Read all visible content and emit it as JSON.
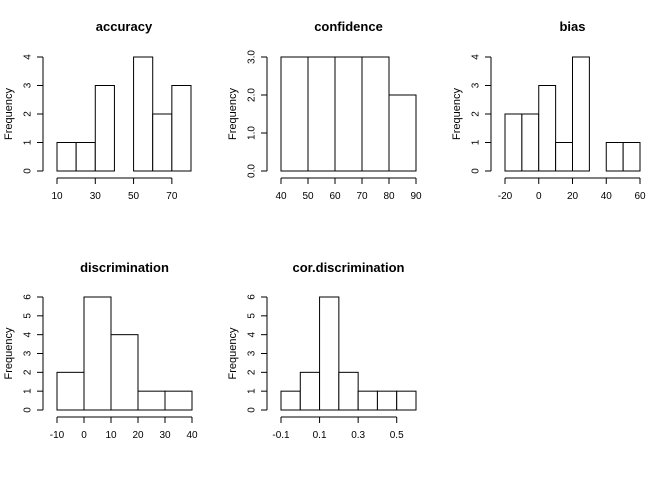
{
  "chart_data": [
    {
      "type": "bar",
      "title": "accuracy",
      "ylabel": "Frequency",
      "bins": [
        [
          10,
          20
        ],
        [
          20,
          30
        ],
        [
          30,
          40
        ],
        [
          40,
          50
        ],
        [
          50,
          60
        ],
        [
          60,
          70
        ],
        [
          70,
          80
        ]
      ],
      "counts": [
        1,
        1,
        3,
        0,
        4,
        2,
        3
      ],
      "xticks": [
        10,
        30,
        50,
        70
      ],
      "yticks": [
        0,
        1,
        2,
        3,
        4
      ],
      "ytick_labels": [
        "0",
        "1",
        "2",
        "3",
        "4"
      ],
      "xlim": [
        10,
        80
      ],
      "ylim": [
        0,
        4
      ]
    },
    {
      "type": "bar",
      "title": "confidence",
      "ylabel": "Frequency",
      "bins": [
        [
          40,
          50
        ],
        [
          50,
          60
        ],
        [
          60,
          70
        ],
        [
          70,
          80
        ],
        [
          80,
          90
        ]
      ],
      "counts": [
        3,
        3,
        3,
        3,
        2
      ],
      "xticks": [
        40,
        50,
        60,
        70,
        80,
        90
      ],
      "yticks": [
        0,
        1,
        2,
        3
      ],
      "ytick_labels": [
        "0.0",
        "1.0",
        "2.0",
        "3.0"
      ],
      "xlim": [
        40,
        90
      ],
      "ylim": [
        0,
        3
      ]
    },
    {
      "type": "bar",
      "title": "bias",
      "ylabel": "Frequency",
      "bins": [
        [
          -20,
          -10
        ],
        [
          -10,
          0
        ],
        [
          0,
          10
        ],
        [
          10,
          20
        ],
        [
          20,
          30
        ],
        [
          30,
          40
        ],
        [
          40,
          50
        ],
        [
          50,
          60
        ]
      ],
      "counts": [
        2,
        2,
        3,
        1,
        4,
        0,
        1,
        1
      ],
      "xticks": [
        -20,
        0,
        20,
        40,
        60
      ],
      "yticks": [
        0,
        1,
        2,
        3,
        4
      ],
      "ytick_labels": [
        "0",
        "1",
        "2",
        "3",
        "4"
      ],
      "xlim": [
        -20,
        60
      ],
      "ylim": [
        0,
        4
      ]
    },
    {
      "type": "bar",
      "title": "discrimination",
      "ylabel": "Frequency",
      "bins": [
        [
          -10,
          0
        ],
        [
          0,
          10
        ],
        [
          10,
          20
        ],
        [
          20,
          30
        ],
        [
          30,
          40
        ]
      ],
      "counts": [
        2,
        6,
        4,
        1,
        1
      ],
      "xticks": [
        -10,
        0,
        10,
        20,
        30,
        40
      ],
      "yticks": [
        0,
        1,
        2,
        3,
        4,
        5,
        6
      ],
      "ytick_labels": [
        "0",
        "1",
        "2",
        "3",
        "4",
        "5",
        "6"
      ],
      "xlim": [
        -10,
        40
      ],
      "ylim": [
        0,
        6
      ]
    },
    {
      "type": "bar",
      "title": "cor.discrimination",
      "ylabel": "Frequency",
      "bins": [
        [
          -0.1,
          0.0
        ],
        [
          0.0,
          0.1
        ],
        [
          0.1,
          0.2
        ],
        [
          0.2,
          0.3
        ],
        [
          0.3,
          0.4
        ],
        [
          0.4,
          0.5
        ],
        [
          0.5,
          0.6
        ]
      ],
      "counts": [
        1,
        2,
        6,
        2,
        1,
        1,
        1
      ],
      "xticks": [
        -0.1,
        0.1,
        0.3,
        0.5
      ],
      "yticks": [
        0,
        1,
        2,
        3,
        4,
        5,
        6
      ],
      "ytick_labels": [
        "0",
        "1",
        "2",
        "3",
        "4",
        "5",
        "6"
      ],
      "xlim": [
        -0.1,
        0.6
      ],
      "ylim": [
        0,
        6
      ]
    }
  ]
}
